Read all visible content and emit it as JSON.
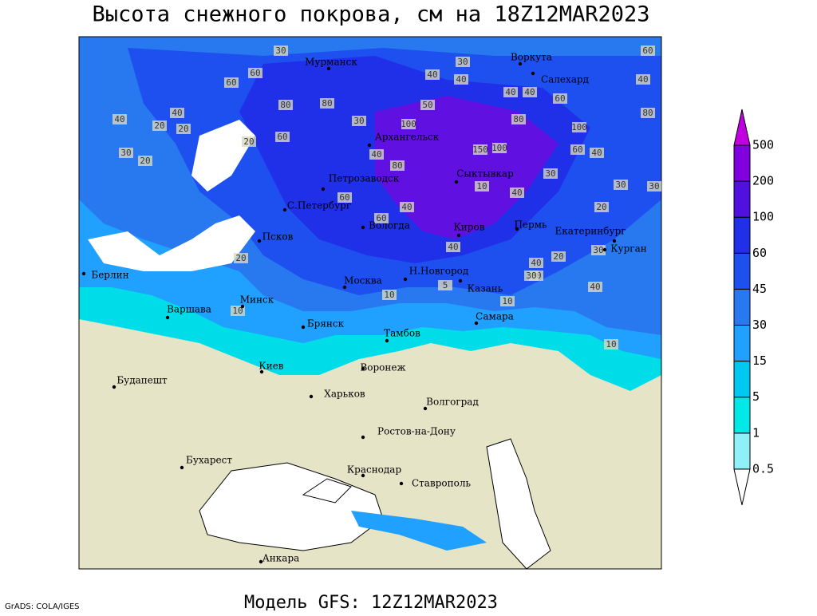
{
  "header": {
    "title": "Высота снежного покрова, см на 18Z12MAR2023"
  },
  "map": {
    "cities": [
      "Мурманск",
      "Воркута",
      "Салехард",
      "Архангельск",
      "Петрозаводск",
      "Сыктывкар",
      "С.Петербург",
      "Вологда",
      "Киров",
      "Пермь",
      "Екатеринбург",
      "Курган",
      "Псков",
      "Берлин",
      "Н.Новгород",
      "Москва",
      "Казань",
      "Минск",
      "Варшава",
      "Брянск",
      "Самара",
      "Тамбов",
      "Киев",
      "Воронеж",
      "Будапешт",
      "Харьков",
      "Волгоград",
      "Ростов-на-Дону",
      "Бухарест",
      "Краснодар",
      "Ставрополь",
      "Анкара"
    ],
    "contour_labels": [
      30,
      60,
      30,
      80,
      60,
      40,
      20,
      80,
      40,
      100,
      150,
      100,
      80,
      40,
      40,
      40,
      60,
      60,
      40,
      100,
      60,
      80,
      40,
      50,
      30,
      20,
      20,
      30,
      40,
      60,
      40,
      80,
      20,
      30,
      40,
      10,
      30,
      20,
      30,
      10,
      10,
      30,
      40,
      60,
      60,
      40,
      30,
      20,
      40,
      20,
      30,
      40,
      5,
      10,
      10
    ]
  },
  "legend": {
    "levels": [
      0.5,
      1,
      5,
      15,
      30,
      45,
      60,
      100,
      200,
      500
    ],
    "colors": [
      "#ffffff",
      "#90f0f8",
      "#00e8e8",
      "#00c8f0",
      "#20a0ff",
      "#2878f0",
      "#1e50f0",
      "#2030e8",
      "#5010e0",
      "#8000e0",
      "#c000e0"
    ]
  },
  "footer": {
    "credit": "GrADS: COLA/IGES",
    "model": "Модель GFS: 12Z12MAR2023"
  }
}
